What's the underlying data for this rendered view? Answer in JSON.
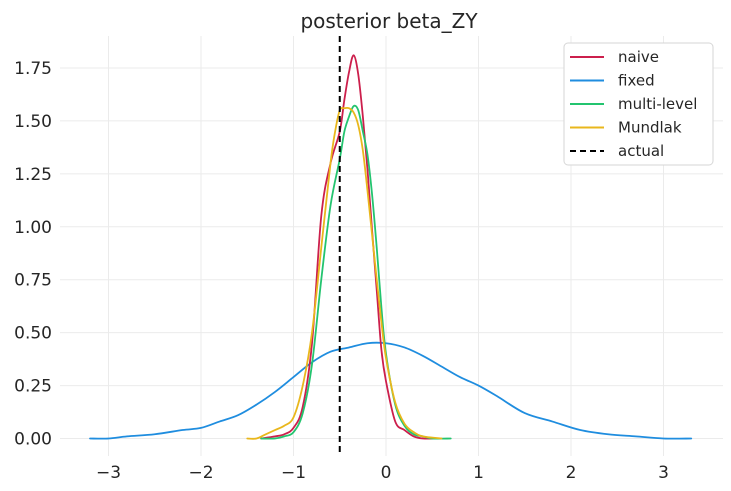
{
  "chart_data": {
    "type": "line",
    "title": "posterior beta_ZY",
    "xlabel": "",
    "ylabel": "",
    "xlim": [
      -3.45,
      3.6
    ],
    "ylim": [
      -0.09,
      1.91
    ],
    "xticks": [
      -3,
      -2,
      -1,
      0,
      1,
      2,
      3
    ],
    "xtick_labels": [
      "−3",
      "−2",
      "−1",
      "0",
      "1",
      "2",
      "3"
    ],
    "yticks": [
      0.0,
      0.25,
      0.5,
      0.75,
      1.0,
      1.25,
      1.5,
      1.75
    ],
    "ytick_labels": [
      "0.00",
      "0.25",
      "0.50",
      "0.75",
      "1.00",
      "1.25",
      "1.50",
      "1.75"
    ],
    "grid": true,
    "legend_position": "top-right",
    "series": [
      {
        "name": "naive",
        "color": "#cc1f4c",
        "x": [
          -1.35,
          -1.2,
          -1.1,
          -1.0,
          -0.9,
          -0.8,
          -0.7,
          -0.6,
          -0.5,
          -0.45,
          -0.4,
          -0.35,
          -0.3,
          -0.25,
          -0.2,
          -0.15,
          -0.1,
          -0.05,
          0.0,
          0.1,
          0.2,
          0.3,
          0.4,
          0.55
        ],
        "y": [
          0.0,
          0.01,
          0.02,
          0.05,
          0.15,
          0.45,
          1.05,
          1.3,
          1.45,
          1.6,
          1.73,
          1.81,
          1.72,
          1.52,
          1.27,
          0.98,
          0.7,
          0.42,
          0.27,
          0.08,
          0.04,
          0.01,
          0.0,
          0.0
        ]
      },
      {
        "name": "fixed",
        "color": "#1f8ddf",
        "x": [
          -3.2,
          -3.0,
          -2.8,
          -2.5,
          -2.2,
          -2.0,
          -1.8,
          -1.6,
          -1.4,
          -1.2,
          -1.0,
          -0.8,
          -0.6,
          -0.4,
          -0.2,
          0.0,
          0.2,
          0.4,
          0.6,
          0.8,
          1.0,
          1.2,
          1.5,
          1.8,
          2.1,
          2.4,
          2.7,
          3.0,
          3.3
        ],
        "y": [
          0.0,
          0.0,
          0.01,
          0.02,
          0.04,
          0.05,
          0.08,
          0.11,
          0.16,
          0.22,
          0.29,
          0.36,
          0.41,
          0.43,
          0.45,
          0.45,
          0.43,
          0.39,
          0.34,
          0.29,
          0.25,
          0.2,
          0.12,
          0.08,
          0.04,
          0.02,
          0.01,
          0.0,
          0.0
        ]
      },
      {
        "name": "multi-level",
        "color": "#23c46f",
        "x": [
          -1.35,
          -1.2,
          -1.1,
          -1.0,
          -0.9,
          -0.8,
          -0.7,
          -0.6,
          -0.5,
          -0.45,
          -0.4,
          -0.35,
          -0.3,
          -0.25,
          -0.2,
          -0.15,
          -0.1,
          -0.05,
          0.0,
          0.1,
          0.2,
          0.3,
          0.4,
          0.5,
          0.7
        ],
        "y": [
          0.0,
          0.0,
          0.01,
          0.03,
          0.12,
          0.35,
          0.75,
          1.1,
          1.32,
          1.45,
          1.52,
          1.57,
          1.55,
          1.45,
          1.34,
          1.15,
          0.9,
          0.62,
          0.4,
          0.16,
          0.06,
          0.02,
          0.01,
          0.0,
          0.0
        ]
      },
      {
        "name": "Mundlak",
        "color": "#e9b71c",
        "x": [
          -1.5,
          -1.4,
          -1.3,
          -1.2,
          -1.1,
          -1.0,
          -0.9,
          -0.8,
          -0.7,
          -0.6,
          -0.55,
          -0.5,
          -0.45,
          -0.4,
          -0.35,
          -0.3,
          -0.25,
          -0.2,
          -0.15,
          -0.1,
          -0.05,
          0.0,
          0.1,
          0.2,
          0.3,
          0.4,
          0.6
        ],
        "y": [
          0.0,
          0.0,
          0.02,
          0.04,
          0.06,
          0.1,
          0.25,
          0.5,
          0.9,
          1.3,
          1.45,
          1.55,
          1.56,
          1.56,
          1.54,
          1.48,
          1.36,
          1.17,
          0.96,
          0.75,
          0.55,
          0.38,
          0.17,
          0.07,
          0.03,
          0.01,
          0.0
        ]
      }
    ],
    "reference_lines": [
      {
        "name": "actual",
        "type": "vertical",
        "x": -0.5,
        "style": "dashed",
        "color": "#000000"
      }
    ]
  }
}
